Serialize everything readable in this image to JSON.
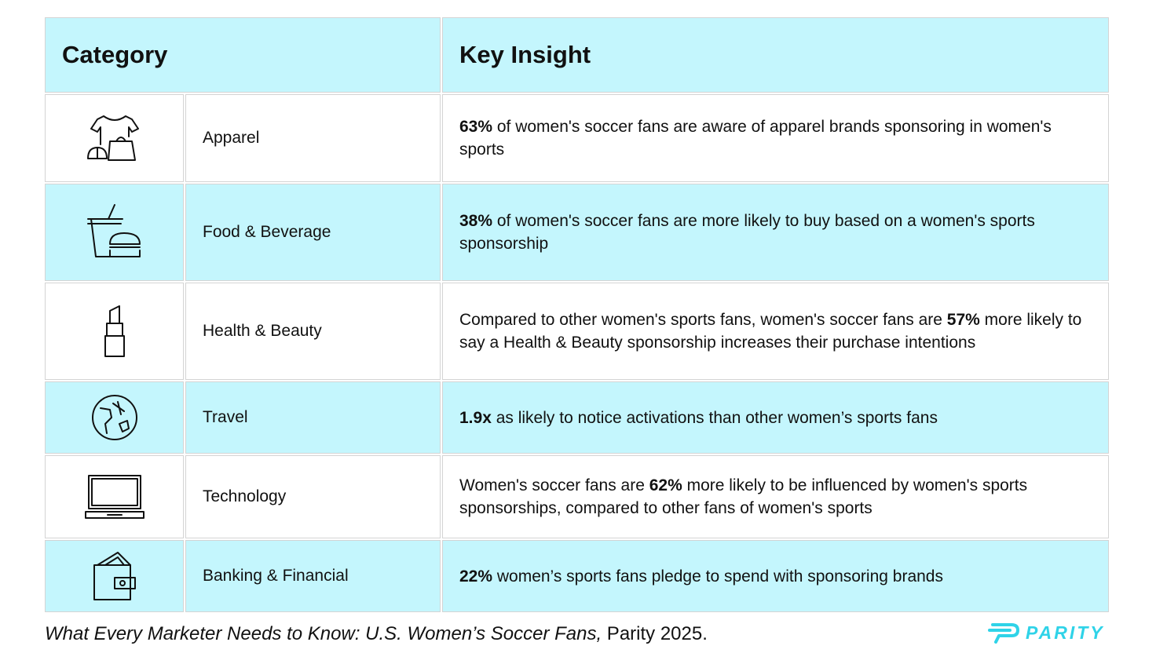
{
  "table": {
    "header": [
      "Category",
      "Key Insight"
    ],
    "rows": [
      {
        "category": "Apparel",
        "insight": [
          {
            "bold": "63%"
          },
          " of women's soccer fans are aware of apparel brands sponsoring in women's sports"
        ]
      },
      {
        "category": "Food & Beverage",
        "insight": [
          {
            "bold": "38%"
          },
          " of women's soccer fans are more likely to buy based on a women's sports sponsorship"
        ]
      },
      {
        "category": "Health & Beauty",
        "insight": [
          "Compared to other women's sports fans, women's soccer fans are ",
          {
            "bold": "57%"
          },
          " more likely to say a Health & Beauty sponsorship increases their purchase intentions"
        ]
      },
      {
        "category": "Travel",
        "insight": [
          {
            "bold": "1.9x"
          },
          " as likely to notice activations than other women’s sports fans"
        ]
      },
      {
        "category": "Technology",
        "insight": [
          "Women's soccer fans are ",
          {
            "bold": "62%"
          },
          " more likely to be influenced by women's sports sponsorships, compared to other fans of women's sports"
        ]
      },
      {
        "category": "Banking & Financial",
        "insight": [
          {
            "bold": "22%"
          },
          " women’s sports fans pledge to spend with sponsoring brands"
        ]
      }
    ]
  },
  "footer": {
    "citation_title": "What Every Marketer Needs to Know: U.S. Women’s Soccer Fans,",
    "citation_rest": " Parity 2025."
  },
  "logo": "PARITY"
}
